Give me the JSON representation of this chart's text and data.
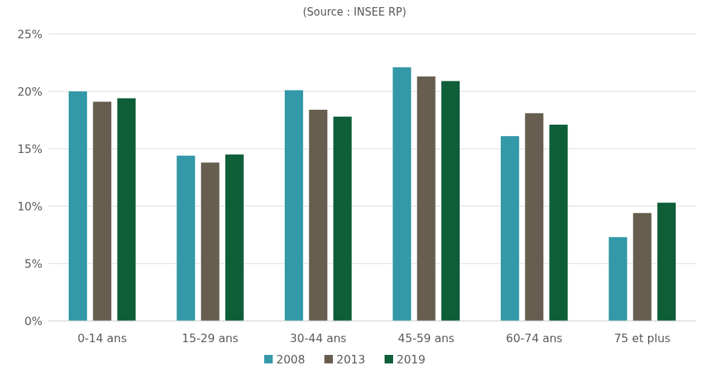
{
  "chart_data": {
    "type": "bar",
    "subtitle": "(Source : INSEE RP)",
    "categories": [
      "0-14 ans",
      "15-29 ans",
      "30-44 ans",
      "45-59 ans",
      "60-74 ans",
      "75 et plus"
    ],
    "series": [
      {
        "name": "2008",
        "color": "#3399a8",
        "values": [
          20.0,
          14.4,
          20.1,
          22.1,
          16.1,
          7.3
        ]
      },
      {
        "name": "2013",
        "color": "#675e50",
        "values": [
          19.1,
          13.8,
          18.4,
          21.3,
          18.1,
          9.4
        ]
      },
      {
        "name": "2019",
        "color": "#0e5e38",
        "values": [
          19.4,
          14.5,
          17.8,
          20.9,
          17.1,
          10.3
        ]
      }
    ],
    "ylim": [
      0,
      25
    ],
    "yticks": [
      {
        "value": 0,
        "label": "0%"
      },
      {
        "value": 5,
        "label": "5%"
      },
      {
        "value": 10,
        "label": "10%"
      },
      {
        "value": 15,
        "label": "15%"
      },
      {
        "value": 20,
        "label": "20%"
      },
      {
        "value": 25,
        "label": "25%"
      }
    ],
    "grid": "y",
    "legend": "bottom"
  }
}
